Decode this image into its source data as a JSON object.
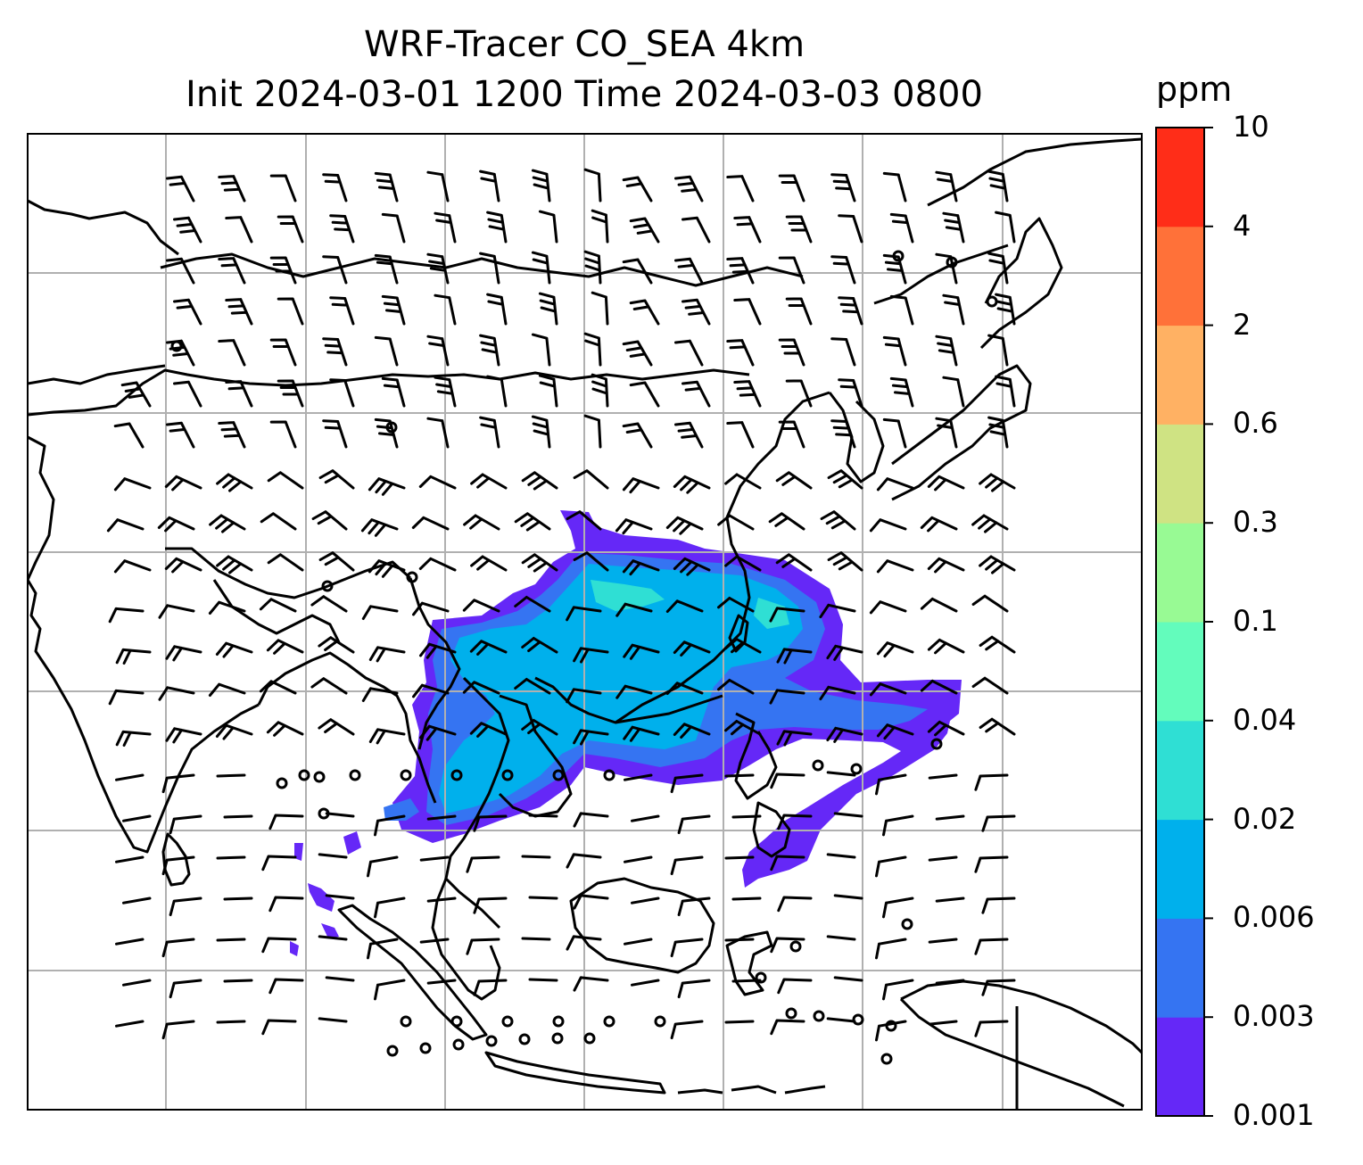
{
  "title": {
    "line1": "WRF-Tracer CO_SEA 4km",
    "line2": "Init 2024-03-01 1200 Time 2024-03-03 0800"
  },
  "colorbar": {
    "unit": "ppm",
    "levels": [
      "0.001",
      "0.003",
      "0.006",
      "0.02",
      "0.04",
      "0.1",
      "0.3",
      "0.6",
      "2",
      "4",
      "10"
    ],
    "colors": [
      "#6528f7",
      "#3574f2",
      "#00b0ec",
      "#2fdfd4",
      "#63fcbc",
      "#98fa94",
      "#cfe383",
      "#ffb163",
      "#ff7139",
      "#ff2d18"
    ]
  },
  "map": {
    "projection_style": "gridlined map with coastlines and country borders",
    "gridlines": true,
    "land_color": "#ffffff",
    "coastline_color": "#000000",
    "wind_barb_color": "#000000",
    "calm_marker": "circle"
  }
}
